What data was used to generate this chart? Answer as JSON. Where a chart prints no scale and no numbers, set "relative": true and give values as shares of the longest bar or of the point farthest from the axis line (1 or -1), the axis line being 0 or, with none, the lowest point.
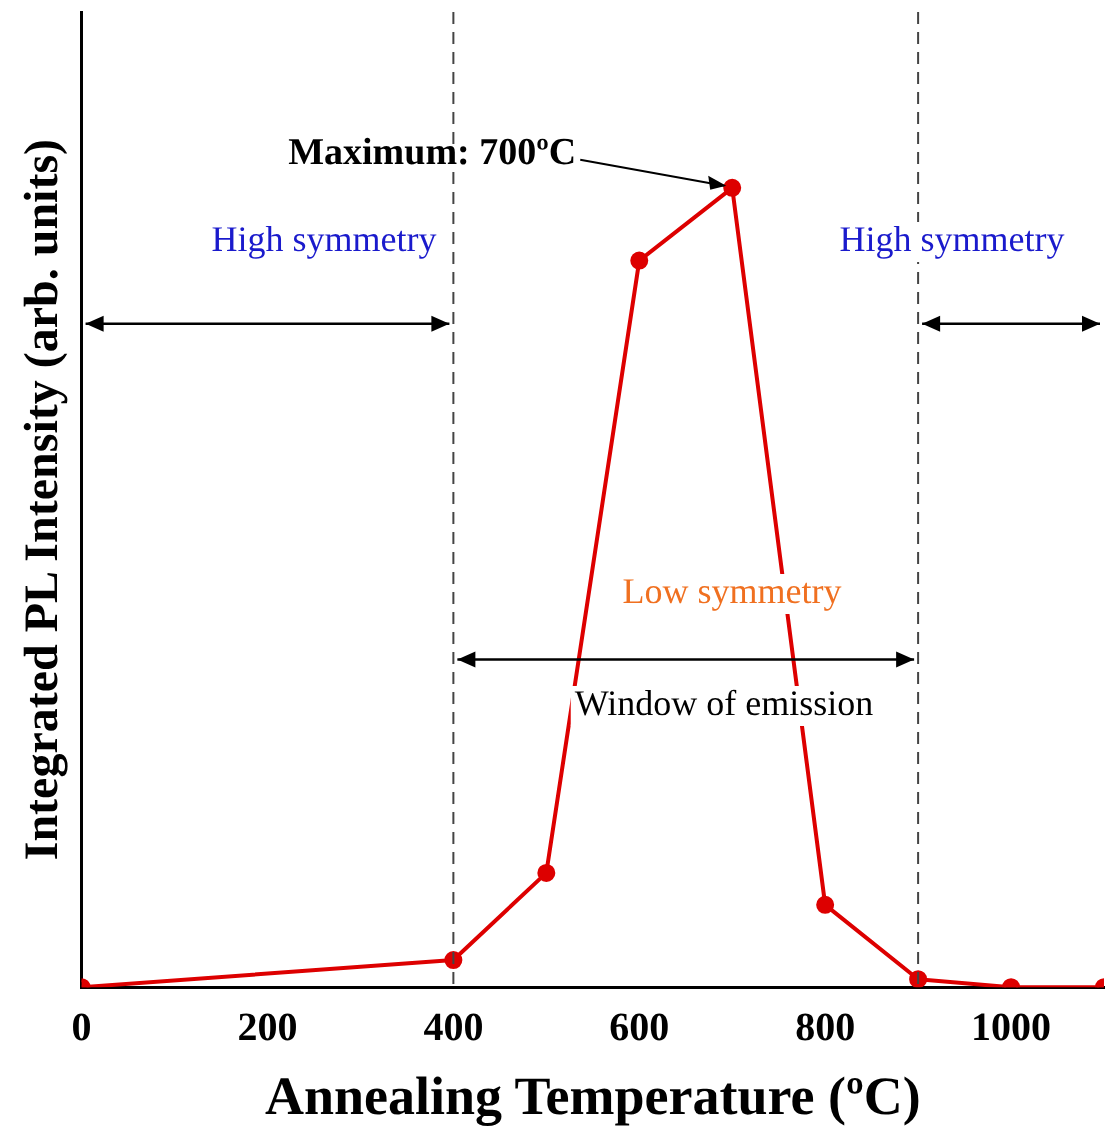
{
  "chart_data": {
    "type": "line",
    "relative": true,
    "xlabel": "Annealing Temperature (ºC)",
    "ylabel": "Integrated PL Intensity (arb. units)",
    "x": [
      0,
      400,
      500,
      600,
      700,
      800,
      900,
      1000,
      1100
    ],
    "series": [
      {
        "color": "#dd0000",
        "values": [
          0,
          0.034,
          0.143,
          0.909,
          1,
          0.103,
          0.01,
          0,
          0
        ]
      }
    ],
    "xlim": [
      0,
      1100
    ],
    "xticks": [
      0,
      200,
      400,
      600,
      800,
      1000
    ],
    "ref_lines": [
      {
        "axis": "x",
        "value": 400,
        "line_style": "dashed"
      },
      {
        "axis": "x",
        "value": 900,
        "line_style": "dashed"
      }
    ],
    "annotations": [
      {
        "text": "Maximum: 700ºC",
        "x": 700,
        "y": 1
      },
      "High symmetry",
      "High symmetry",
      "Low symmetry",
      "Window of emission"
    ],
    "grid": false,
    "legend": false,
    "marker": "circle",
    "line_style": "solid"
  }
}
